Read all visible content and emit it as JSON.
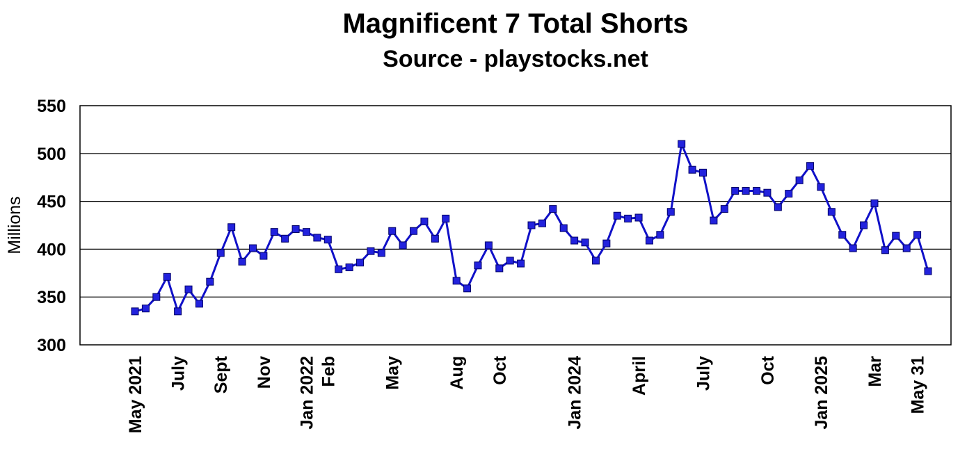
{
  "chart_data": {
    "type": "line",
    "title": "Magnificent 7 Total Shorts",
    "subtitle": "Source - playstocks.net",
    "ylabel": "Millions",
    "ylim": [
      300,
      550
    ],
    "yticks": [
      300,
      350,
      400,
      450,
      500,
      550
    ],
    "grid": "horizontal",
    "series_color": "#1010c8",
    "marker_color": "#2222dd",
    "x_tick_labels": [
      {
        "label": "May 2021",
        "index": 0
      },
      {
        "label": "July",
        "index": 4
      },
      {
        "label": "Sept",
        "index": 8
      },
      {
        "label": "Nov",
        "index": 12
      },
      {
        "label": "Jan 2022",
        "index": 16
      },
      {
        "label": "Feb",
        "index": 18
      },
      {
        "label": "May",
        "index": 24
      },
      {
        "label": "Aug",
        "index": 30
      },
      {
        "label": "Oct",
        "index": 34
      },
      {
        "label": "Jan 2024",
        "index": 41
      },
      {
        "label": "April",
        "index": 47
      },
      {
        "label": "July",
        "index": 53
      },
      {
        "label": "Oct",
        "index": 59
      },
      {
        "label": "Jan 2025",
        "index": 64
      },
      {
        "label": "Mar",
        "index": 69
      },
      {
        "label": "May 31",
        "index": 73
      }
    ],
    "series": [
      {
        "values": [
          335,
          338,
          350,
          371,
          335,
          358,
          343,
          366,
          396,
          423,
          387,
          401,
          393,
          418,
          411,
          421,
          418,
          412,
          410,
          379,
          381,
          386,
          398,
          396,
          419,
          404,
          419,
          429,
          411,
          432,
          367,
          359,
          383,
          404,
          380,
          388,
          385,
          425,
          427,
          442,
          422,
          409,
          407,
          388,
          406,
          435,
          432,
          433,
          409,
          415,
          439,
          510,
          483,
          480,
          430,
          442,
          461,
          461,
          461,
          459,
          444,
          458,
          472,
          487,
          465,
          439,
          415,
          401,
          425,
          448,
          399,
          414,
          401,
          415,
          377
        ]
      }
    ]
  }
}
